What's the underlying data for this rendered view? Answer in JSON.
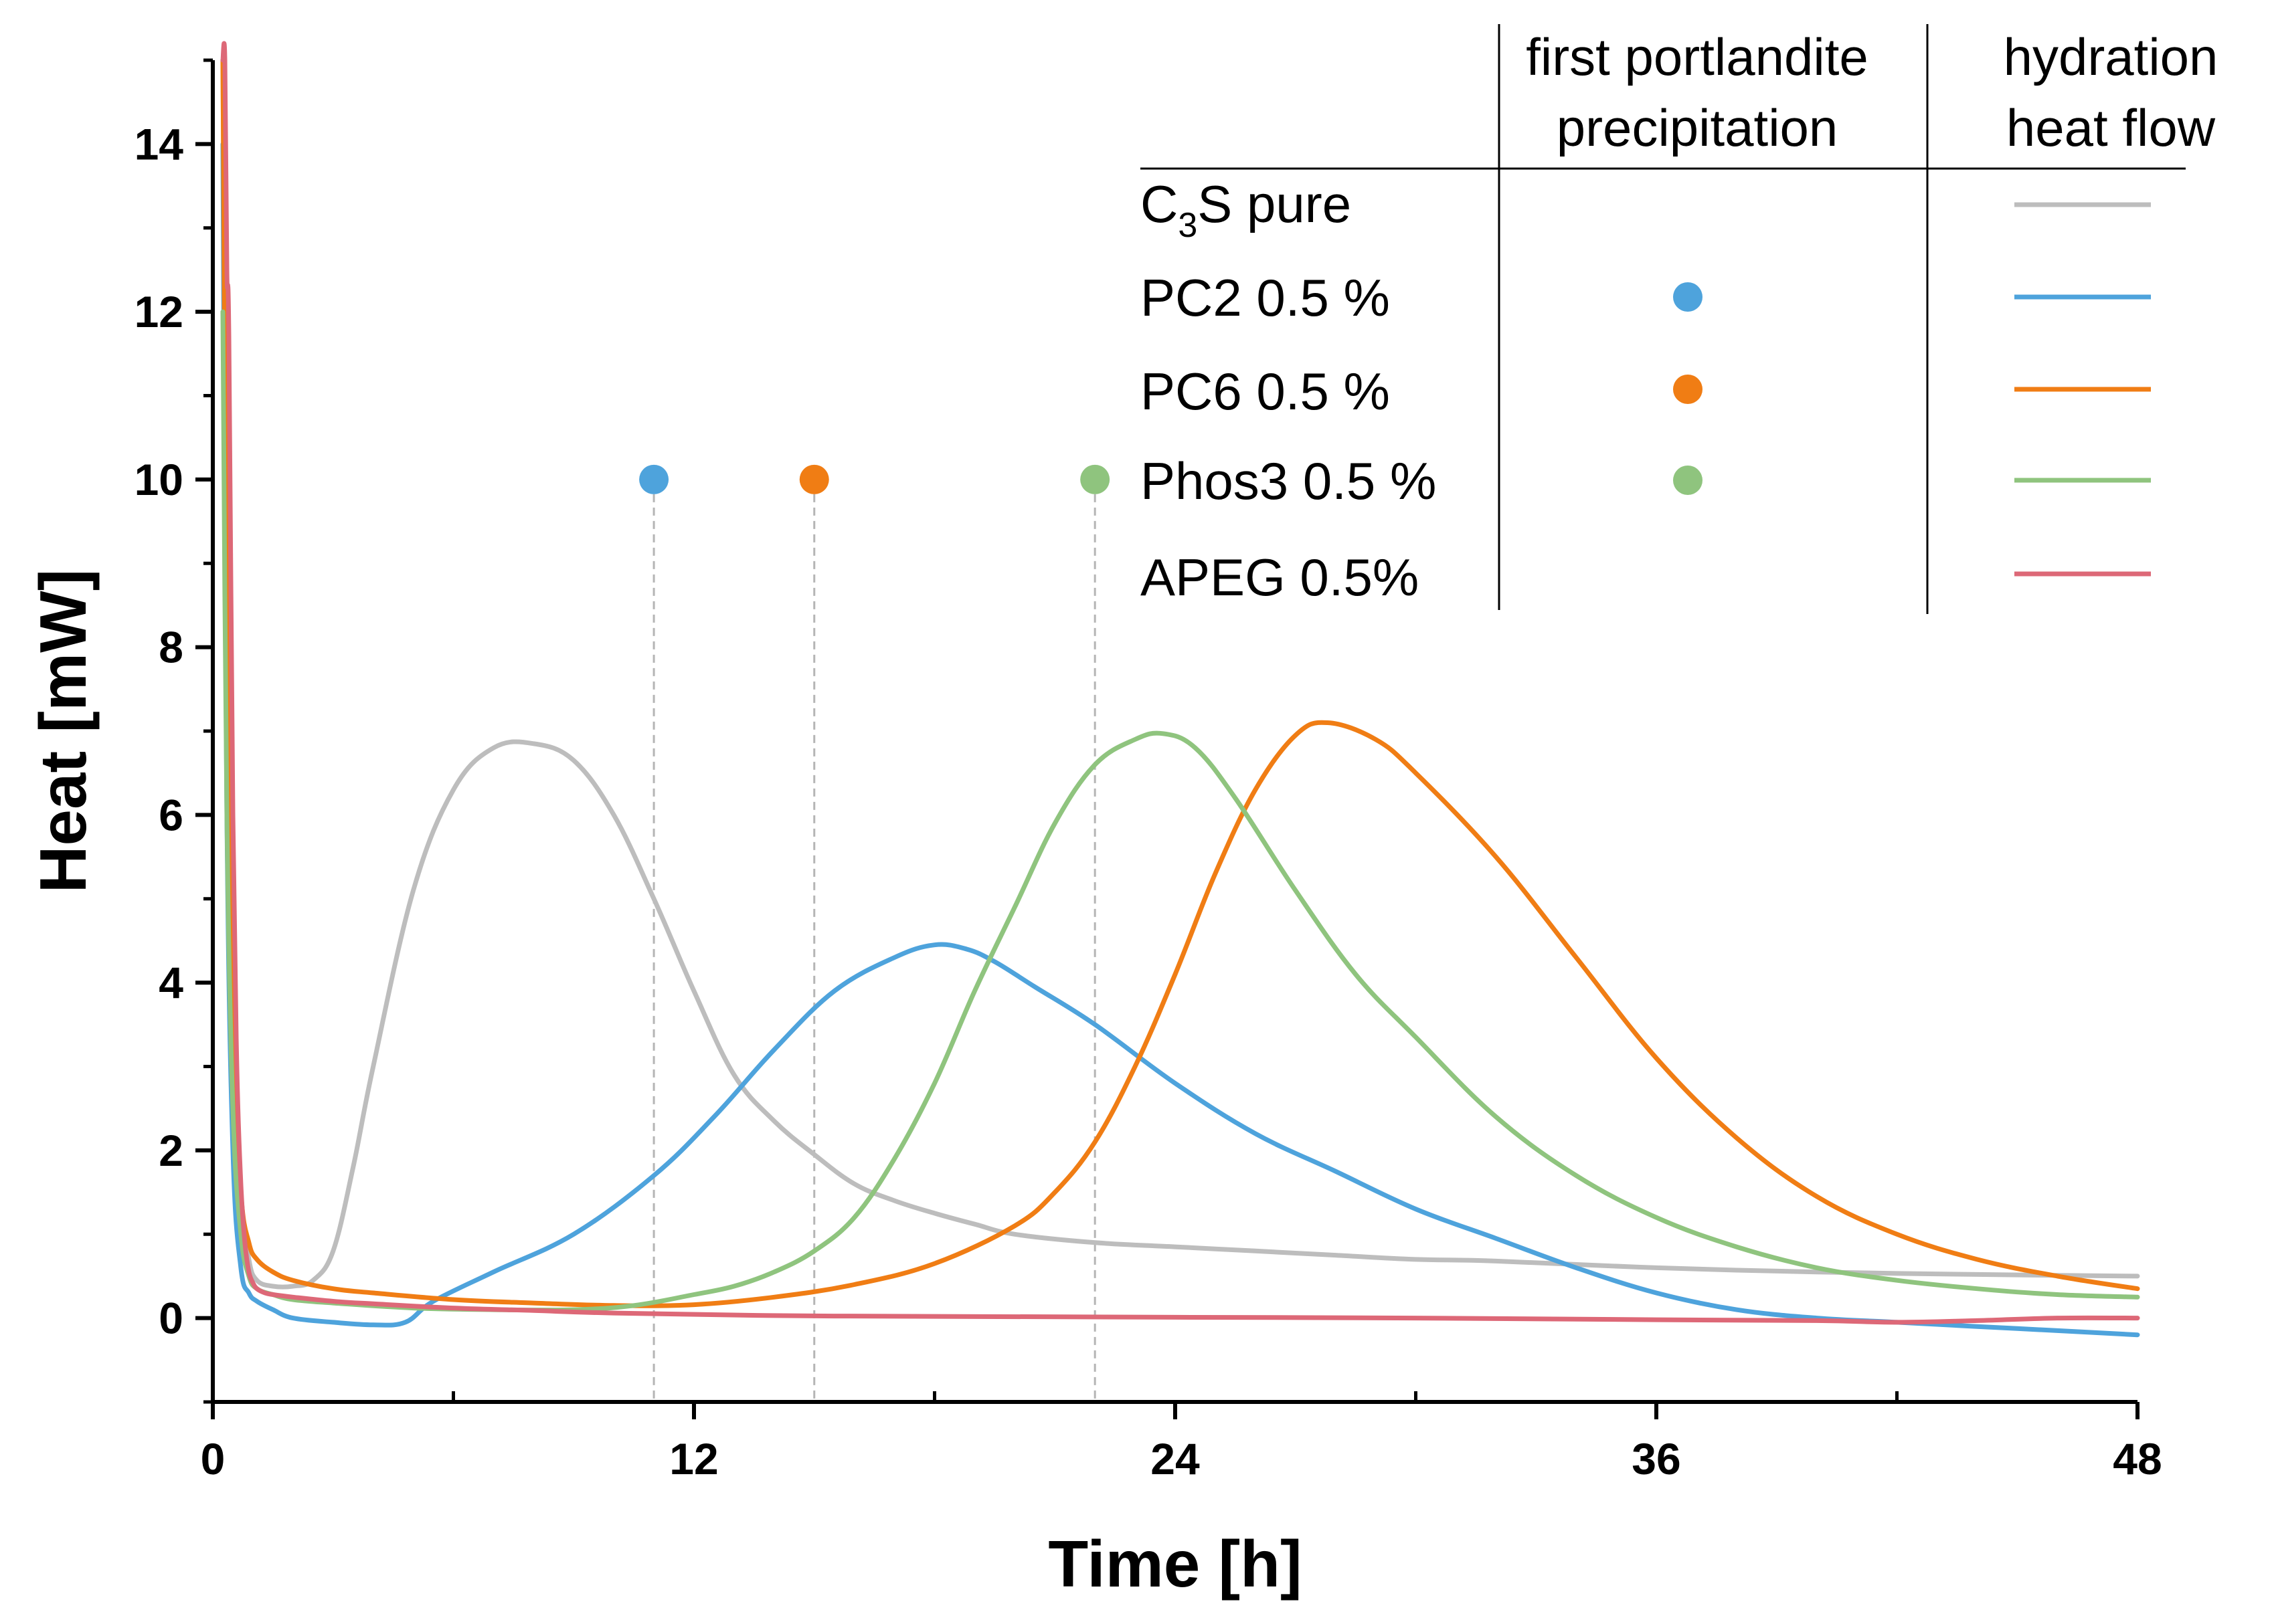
{
  "chart_data": {
    "type": "line",
    "xlabel": "Time [h]",
    "ylabel": "Heat [mW]",
    "xlim": [
      0,
      48
    ],
    "ylim": [
      -1,
      15
    ],
    "x_ticks": [
      0,
      12,
      24,
      36,
      48
    ],
    "x_minor_ticks": [
      6,
      18,
      30,
      42
    ],
    "y_ticks": [
      0,
      2,
      4,
      6,
      8,
      10,
      12,
      14
    ],
    "y_minor_ticks": [
      -1,
      1,
      3,
      5,
      7,
      9,
      11,
      13,
      15
    ],
    "grid": false,
    "legend": {
      "position": "top-right",
      "column_headers": [
        {
          "line1": "first portlandite",
          "line2": "precipitation"
        },
        {
          "line1": "hydration",
          "line2": "heat flow"
        }
      ],
      "entries": [
        {
          "label_main": "C",
          "label_sub": "3",
          "label_rest": "S pure",
          "marker": false,
          "color": "#bdbdbd"
        },
        {
          "label": "PC2 0.5 %",
          "marker": true,
          "color": "#4ea3dc"
        },
        {
          "label": "PC6 0.5 %",
          "marker": true,
          "color": "#f07d14"
        },
        {
          "label": "Phos3 0.5 %",
          "marker": true,
          "color": "#8fc47e"
        },
        {
          "label": "APEG 0.5%",
          "marker": false,
          "color": "#dd6877"
        }
      ]
    },
    "annotations": [
      {
        "type": "portlandite-marker",
        "series": "PC2 0.5 %",
        "x": 11.0,
        "y": 10,
        "color": "#4ea3dc"
      },
      {
        "type": "portlandite-marker",
        "series": "PC6 0.5 %",
        "x": 15.0,
        "y": 10,
        "color": "#f07d14"
      },
      {
        "type": "portlandite-marker",
        "series": "Phos3 0.5 %",
        "x": 22.0,
        "y": 10,
        "color": "#8fc47e"
      }
    ],
    "series": [
      {
        "name": "C3S pure",
        "color": "#bdbdbd",
        "x": [
          0.25,
          0.35,
          0.5,
          0.7,
          0.9,
          1.1,
          1.5,
          2.0,
          2.5,
          3.0,
          3.5,
          4.0,
          5.0,
          6.0,
          7.0,
          8.0,
          9.0,
          10.0,
          11.0,
          12.0,
          13.0,
          14.0,
          15.0,
          16.0,
          17.0,
          18.0,
          19.0,
          20.0,
          22.0,
          24.0,
          26.0,
          28.0,
          30.0,
          32.0,
          36.0,
          40.0,
          44.0,
          48.0
        ],
        "y": [
          15.0,
          8.0,
          3.5,
          1.5,
          0.7,
          0.45,
          0.38,
          0.38,
          0.45,
          0.8,
          1.8,
          3.0,
          5.1,
          6.3,
          6.8,
          6.85,
          6.65,
          6.0,
          5.0,
          3.9,
          2.9,
          2.35,
          1.95,
          1.6,
          1.4,
          1.25,
          1.12,
          1.0,
          0.9,
          0.85,
          0.8,
          0.75,
          0.7,
          0.68,
          0.6,
          0.55,
          0.52,
          0.5
        ]
      },
      {
        "name": "PC2 0.5 %",
        "color": "#4ea3dc",
        "x": [
          0.25,
          0.35,
          0.5,
          0.7,
          0.9,
          1.1,
          1.5,
          2.0,
          3.0,
          4.0,
          4.8,
          5.5,
          7.0,
          9.0,
          11.0,
          12.5,
          14.0,
          15.5,
          17.0,
          18.0,
          18.8,
          19.5,
          20.5,
          22.0,
          24.0,
          26.0,
          28.0,
          30.0,
          32.0,
          34.0,
          36.0,
          38.0,
          40.0,
          42.0,
          44.0,
          46.0,
          48.0
        ],
        "y": [
          14.0,
          6.0,
          2.0,
          0.6,
          0.3,
          0.2,
          0.1,
          0.0,
          -0.05,
          -0.08,
          -0.05,
          0.2,
          0.55,
          1.0,
          1.7,
          2.4,
          3.2,
          3.9,
          4.3,
          4.45,
          4.4,
          4.25,
          3.95,
          3.5,
          2.8,
          2.2,
          1.75,
          1.3,
          0.95,
          0.6,
          0.3,
          0.1,
          0.0,
          -0.05,
          -0.1,
          -0.15,
          -0.2
        ]
      },
      {
        "name": "PC6 0.5 %",
        "color": "#f07d14",
        "x": [
          0.25,
          0.35,
          0.5,
          0.7,
          0.9,
          1.1,
          1.5,
          2.0,
          3.0,
          4.0,
          6.0,
          8.0,
          10.0,
          12.0,
          14.0,
          16.0,
          18.0,
          20.0,
          21.0,
          22.0,
          23.0,
          24.0,
          25.0,
          26.0,
          27.0,
          27.8,
          29.0,
          30.0,
          32.0,
          34.0,
          36.0,
          38.0,
          40.0,
          42.0,
          44.0,
          46.0,
          48.0
        ],
        "y": [
          15.0,
          8.0,
          3.5,
          1.5,
          0.9,
          0.7,
          0.55,
          0.45,
          0.35,
          0.3,
          0.22,
          0.18,
          0.15,
          0.16,
          0.25,
          0.4,
          0.65,
          1.1,
          1.5,
          2.1,
          3.0,
          4.1,
          5.3,
          6.3,
          6.95,
          7.1,
          6.9,
          6.5,
          5.5,
          4.3,
          3.1,
          2.15,
          1.45,
          1.0,
          0.7,
          0.5,
          0.35
        ]
      },
      {
        "name": "Phos3 0.5 %",
        "color": "#8fc47e",
        "x": [
          0.25,
          0.35,
          0.5,
          0.7,
          0.9,
          1.1,
          1.5,
          2.0,
          3.0,
          5.0,
          7.0,
          9.0,
          10.5,
          12.0,
          13.0,
          14.0,
          15.0,
          16.0,
          17.0,
          18.0,
          19.0,
          20.0,
          21.0,
          22.0,
          23.0,
          23.7,
          24.5,
          25.5,
          27.0,
          28.5,
          30.0,
          32.0,
          34.0,
          36.0,
          38.0,
          40.0,
          42.0,
          44.0,
          46.0,
          48.0
        ],
        "y": [
          12.0,
          6.0,
          2.5,
          1.0,
          0.5,
          0.35,
          0.28,
          0.22,
          0.18,
          0.12,
          0.1,
          0.1,
          0.15,
          0.28,
          0.38,
          0.55,
          0.8,
          1.2,
          1.9,
          2.8,
          3.9,
          4.9,
          5.9,
          6.6,
          6.9,
          6.97,
          6.8,
          6.2,
          5.1,
          4.1,
          3.35,
          2.4,
          1.7,
          1.2,
          0.85,
          0.6,
          0.45,
          0.35,
          0.28,
          0.25
        ]
      },
      {
        "name": "APEG 0.5%",
        "color": "#dd6877",
        "x": [
          0.25,
          0.3,
          0.35,
          0.4,
          0.5,
          0.6,
          0.7,
          0.8,
          0.9,
          1.0,
          1.1,
          1.3,
          1.5,
          2.0,
          3.0,
          4.0,
          6.0,
          8.0,
          10.0,
          14.0,
          18.0,
          24.0,
          30.0,
          36.0,
          40.0,
          42.0,
          44.0,
          46.0,
          48.0
        ],
        "y": [
          15.0,
          15.0,
          12.5,
          11.7,
          6.0,
          3.0,
          1.6,
          0.9,
          0.55,
          0.42,
          0.35,
          0.3,
          0.28,
          0.25,
          0.2,
          0.17,
          0.12,
          0.09,
          0.06,
          0.03,
          0.02,
          0.01,
          0.0,
          -0.02,
          -0.03,
          -0.05,
          -0.03,
          0.0,
          0.0
        ]
      }
    ]
  }
}
